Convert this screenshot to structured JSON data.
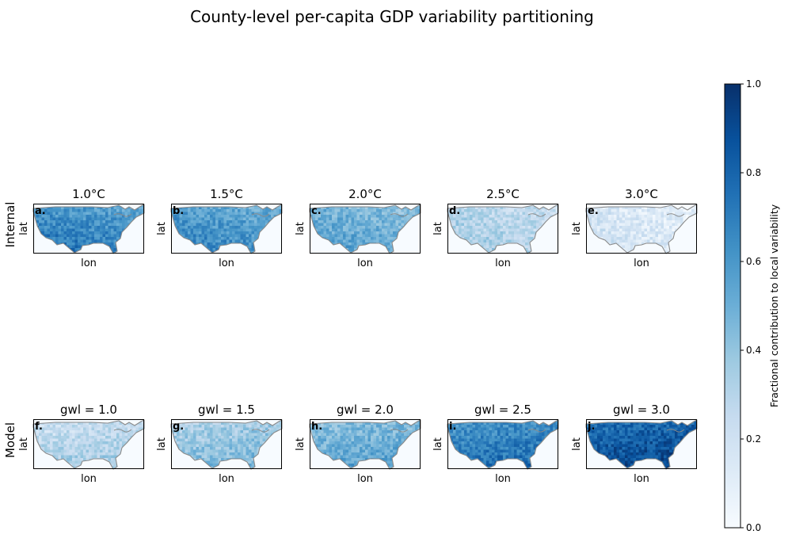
{
  "title": "County-level per-capita GDP variability partitioning",
  "chart_data": {
    "type": "heatmap",
    "title": "County-level per-capita GDP variability partitioning",
    "colormap": "Blues",
    "colormap_stops": [
      "#f7fbff",
      "#deebf7",
      "#c6dbef",
      "#9ecae1",
      "#6baed6",
      "#4292c6",
      "#2171b5",
      "#08519c",
      "#08306b"
    ],
    "coastline_color": "#8a8a8a",
    "colorbar": {
      "label": "Fractional contribution to local variability",
      "range": [
        0.0,
        1.0
      ],
      "ticks": [
        "0.0",
        "0.2",
        "0.4",
        "0.6",
        "0.8",
        "1.0"
      ]
    },
    "rows": [
      {
        "label": "Internal",
        "panels": [
          {
            "letter": "a.",
            "title": "1.0°C",
            "xlabel": "lon",
            "ylabel": "lat",
            "mean_value": 0.65
          },
          {
            "letter": "b.",
            "title": "1.5°C",
            "xlabel": "lon",
            "ylabel": "lat",
            "mean_value": 0.6
          },
          {
            "letter": "c.",
            "title": "2.0°C",
            "xlabel": "lon",
            "ylabel": "lat",
            "mean_value": 0.5
          },
          {
            "letter": "d.",
            "title": "2.5°C",
            "xlabel": "lon",
            "ylabel": "lat",
            "mean_value": 0.3
          },
          {
            "letter": "e.",
            "title": "3.0°C",
            "xlabel": "lon",
            "ylabel": "lat",
            "mean_value": 0.15
          }
        ]
      },
      {
        "label": "Model",
        "panels": [
          {
            "letter": "f.",
            "title": "gwl = 1.0",
            "xlabel": "lon",
            "ylabel": "lat",
            "mean_value": 0.3
          },
          {
            "letter": "g.",
            "title": "gwl = 1.5",
            "xlabel": "lon",
            "ylabel": "lat",
            "mean_value": 0.4
          },
          {
            "letter": "h.",
            "title": "gwl = 2.0",
            "xlabel": "lon",
            "ylabel": "lat",
            "mean_value": 0.5
          },
          {
            "letter": "i.",
            "title": "gwl = 2.5",
            "xlabel": "lon",
            "ylabel": "lat",
            "mean_value": 0.7
          },
          {
            "letter": "j.",
            "title": "gwl = 3.0",
            "xlabel": "lon",
            "ylabel": "lat",
            "mean_value": 0.85
          }
        ]
      }
    ]
  }
}
